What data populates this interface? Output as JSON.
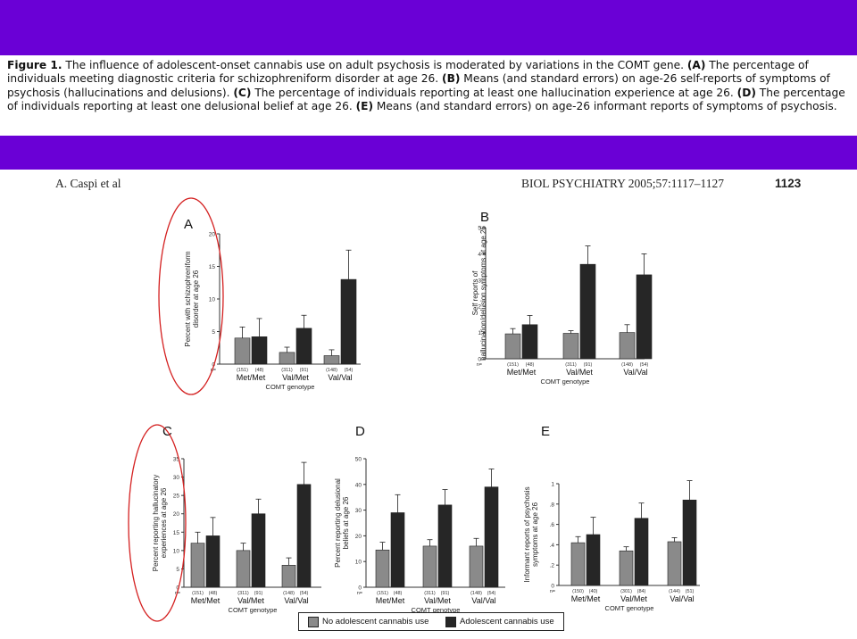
{
  "caption": {
    "fig_label": "Figure 1.",
    "text_0": " The influence of adolescent-onset cannabis use on adult psychosis is moderated by variations in the COMT gene. ",
    "label_a": "(A)",
    "text_a": " The percentage of individuals meeting diagnostic criteria for schizophreniform disorder at age 26. ",
    "label_b": "(B)",
    "text_b": " Means (and standard errors) on age-26 self-reports of symptoms of psychosis (hallucinations and delusions). ",
    "label_c": "(C)",
    "text_c": " The percentage of individuals reporting at least one hallucination experience at age 26. ",
    "label_d": "(D)",
    "text_d": " The percentage of individuals reporting at least one delusional belief at age 26. ",
    "label_e": "(E)",
    "text_e": " Means (and standard errors) on age-26 informant reports of symptoms of psychosis."
  },
  "header": {
    "author": "A. Caspi et al",
    "journal": "BIOL PSYCHIATRY 2005;57:1117–1127",
    "page": "1123"
  },
  "legend": {
    "no_cannabis": "No adolescent cannabis use",
    "cannabis": "Adolescent cannabis use"
  },
  "colors": {
    "band": "#6a00d6",
    "no_cannabis": "#8a8a8a",
    "cannabis": "#262626",
    "annotation": "#d42020"
  },
  "chart_data": [
    {
      "panel": "A",
      "type": "bar",
      "ylabel": "Percent with schizophreniform disorder at age 26",
      "xlabel": "COMT genotype",
      "ylim": [
        0,
        20
      ],
      "yticks": [
        0,
        5,
        10,
        15,
        20
      ],
      "categories": [
        "Met/Met",
        "Val/Met",
        "Val/Val"
      ],
      "n_prefix": "n=",
      "n_labels": [
        [
          "(151)",
          "(48)"
        ],
        [
          "(311)",
          "(91)"
        ],
        [
          "(148)",
          "(54)"
        ]
      ],
      "series": [
        {
          "name": "No adolescent cannabis use",
          "values": [
            4.0,
            1.8,
            1.3
          ],
          "errors": [
            1.7,
            0.8,
            0.9
          ]
        },
        {
          "name": "Adolescent cannabis use",
          "values": [
            4.2,
            5.5,
            13.0
          ],
          "errors": [
            2.8,
            2.0,
            4.5
          ]
        }
      ]
    },
    {
      "panel": "B",
      "type": "bar",
      "ylabel": "Self reports of hallucination/delusion symptoms at age 26",
      "xlabel": "COMT genotype",
      "ylim": [
        0,
        5
      ],
      "yticks": [
        0,
        1,
        2,
        3,
        4,
        5
      ],
      "categories": [
        "Met/Met",
        "Val/Met",
        "Val/Val"
      ],
      "n_prefix": "n=",
      "n_labels": [
        [
          "(151)",
          "(48)"
        ],
        [
          "(311)",
          "(91)"
        ],
        [
          "(148)",
          "(54)"
        ]
      ],
      "series": [
        {
          "name": "No adolescent cannabis use",
          "values": [
            0.95,
            0.97,
            1.0
          ],
          "errors": [
            0.2,
            0.1,
            0.3
          ]
        },
        {
          "name": "Adolescent cannabis use",
          "values": [
            1.3,
            3.6,
            3.2
          ],
          "errors": [
            0.35,
            0.7,
            0.8
          ]
        }
      ]
    },
    {
      "panel": "C",
      "type": "bar",
      "ylabel": "Percent reporting hallucinatory experiences at age 26",
      "xlabel": "COMT genotype",
      "ylim": [
        0,
        35
      ],
      "yticks": [
        0,
        5,
        10,
        15,
        20,
        25,
        30,
        35
      ],
      "categories": [
        "Met/Met",
        "Val/Met",
        "Val/Val"
      ],
      "n_prefix": "n=",
      "n_labels": [
        [
          "(151)",
          "(48)"
        ],
        [
          "(311)",
          "(91)"
        ],
        [
          "(148)",
          "(54)"
        ]
      ],
      "series": [
        {
          "name": "No adolescent cannabis use",
          "values": [
            12,
            10,
            6
          ],
          "errors": [
            3,
            2,
            2
          ]
        },
        {
          "name": "Adolescent cannabis use",
          "values": [
            14,
            20,
            28
          ],
          "errors": [
            5,
            4,
            6
          ]
        }
      ]
    },
    {
      "panel": "D",
      "type": "bar",
      "ylabel": "Percent reporting delusional beliefs at age 26",
      "xlabel": "COMT genotype",
      "ylim": [
        0,
        50
      ],
      "yticks": [
        0,
        10,
        20,
        30,
        40,
        50
      ],
      "categories": [
        "Met/Met",
        "Val/Met",
        "Val/Val"
      ],
      "n_prefix": "n=",
      "n_labels": [
        [
          "(151)",
          "(48)"
        ],
        [
          "(311)",
          "(91)"
        ],
        [
          "(148)",
          "(54)"
        ]
      ],
      "series": [
        {
          "name": "No adolescent cannabis use",
          "values": [
            14.5,
            16,
            16
          ],
          "errors": [
            3,
            2.5,
            3
          ]
        },
        {
          "name": "Adolescent cannabis use",
          "values": [
            29,
            32,
            39
          ],
          "errors": [
            7,
            6,
            7
          ]
        }
      ]
    },
    {
      "panel": "E",
      "type": "bar",
      "ylabel": "Informant reports of psychosis symptoms at age 26",
      "xlabel": "COMT genotype",
      "ylim": [
        0,
        1
      ],
      "yticks": [
        0,
        0.2,
        0.4,
        0.6,
        0.8,
        1
      ],
      "ytick_labels": [
        "0",
        ".2",
        ".4",
        ".6",
        ".8",
        "1"
      ],
      "categories": [
        "Met/Met",
        "Val/Met",
        "Val/Val"
      ],
      "n_prefix": "n=",
      "n_labels": [
        [
          "(150)",
          "(40)"
        ],
        [
          "(301)",
          "(84)"
        ],
        [
          "(144)",
          "(51)"
        ]
      ],
      "series": [
        {
          "name": "No adolescent cannabis use",
          "values": [
            0.42,
            0.34,
            0.43
          ],
          "errors": [
            0.06,
            0.04,
            0.04
          ]
        },
        {
          "name": "Adolescent cannabis use",
          "values": [
            0.5,
            0.66,
            0.84
          ],
          "errors": [
            0.17,
            0.15,
            0.19
          ]
        }
      ]
    }
  ]
}
